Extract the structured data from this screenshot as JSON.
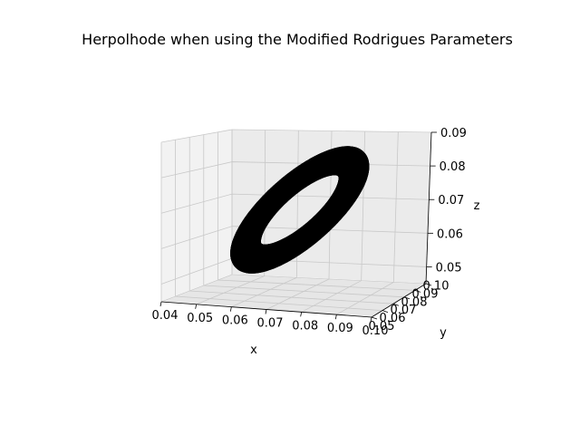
{
  "chart_data": {
    "type": "scatter",
    "projection": "3d",
    "title": "Herpolhode when using the Modified Rodrigues Parameters",
    "xlabel": "x",
    "ylabel": "y",
    "zlabel": "z",
    "x_ticks": [
      "0.04",
      "0.05",
      "0.06",
      "0.07",
      "0.08",
      "0.09",
      "0.10"
    ],
    "y_ticks": [
      "0.05",
      "0.06",
      "0.07",
      "0.08",
      "0.09",
      "0.10"
    ],
    "z_ticks": [
      "0.05",
      "0.06",
      "0.07",
      "0.08",
      "0.09"
    ],
    "xlim": [
      0.04,
      0.1
    ],
    "ylim": [
      0.05,
      0.1
    ],
    "zlim": [
      0.045,
      0.09
    ],
    "marker_color": "#000000",
    "grid": true,
    "series": [
      {
        "center": [
          0.072,
          0.075,
          0.068
        ],
        "radius": 0.022
      },
      {
        "center": [
          0.072,
          0.075,
          0.068
        ],
        "radius": 0.019
      },
      {
        "center": [
          0.072,
          0.075,
          0.068
        ],
        "radius": 0.016
      }
    ]
  }
}
